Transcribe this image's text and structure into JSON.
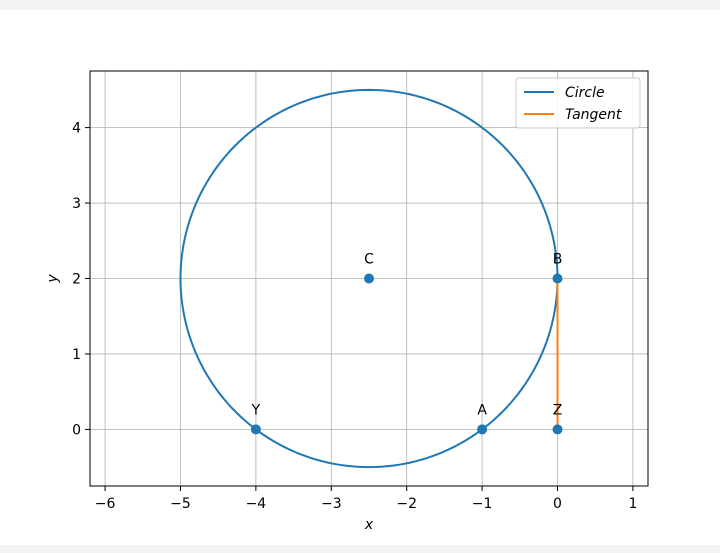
{
  "chart_data": {
    "type": "line",
    "xlabel": "x",
    "ylabel": "y",
    "xlim": [
      -6.2,
      1.2
    ],
    "ylim": [
      -0.75,
      4.75
    ],
    "xticks": [
      -6,
      -5,
      -4,
      -3,
      -2,
      -1,
      0,
      1
    ],
    "yticks": [
      0,
      1,
      2,
      3,
      4
    ],
    "xtick_labels": [
      "−6",
      "−5",
      "−4",
      "−3",
      "−2",
      "−1",
      "0",
      "1"
    ],
    "ytick_labels": [
      "0",
      "1",
      "2",
      "3",
      "4"
    ],
    "grid": true,
    "legend_position": "top-right",
    "series": [
      {
        "name": "Circle",
        "kind": "circle",
        "center": [
          -2.5,
          2
        ],
        "radius": 2.5,
        "color": "#1f77b4"
      },
      {
        "name": "Tangent",
        "kind": "segment",
        "x": [
          0,
          0
        ],
        "y": [
          0,
          2
        ],
        "color": "#ff7f0e"
      }
    ],
    "points": [
      {
        "label": "C",
        "x": -2.5,
        "y": 2
      },
      {
        "label": "B",
        "x": 0,
        "y": 2
      },
      {
        "label": "Y",
        "x": -4,
        "y": 0
      },
      {
        "label": "A",
        "x": -1,
        "y": 0
      },
      {
        "label": "Z",
        "x": 0,
        "y": 0
      }
    ],
    "point_color": "#1f77b4"
  }
}
